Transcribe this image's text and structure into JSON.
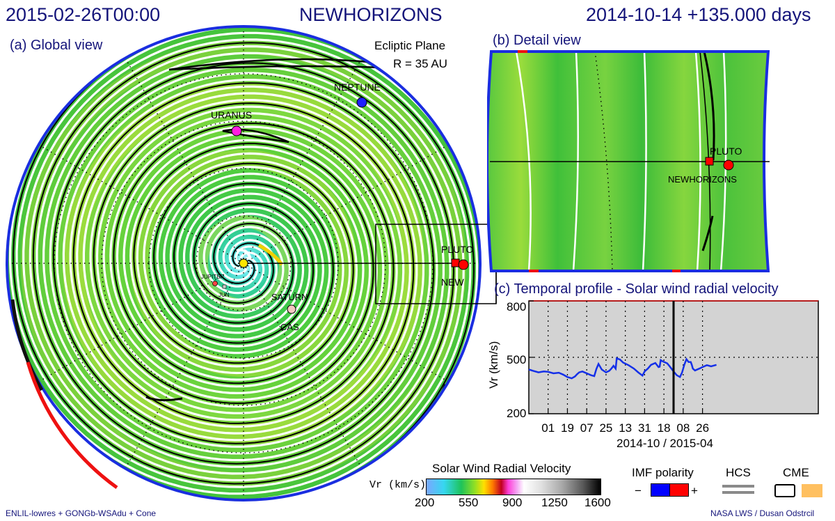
{
  "header": {
    "left": "2015-02-26T00:00",
    "center": "NEWHORIZONS",
    "right": "2014-10-14 +135.000 days"
  },
  "global_view": {
    "title": "(a) Global view",
    "plane": "Ecliptic Plane",
    "radius": "R = 35 AU",
    "labels": {
      "neptune": "NEPTUNE",
      "uranus": "URANUS",
      "pluto": "PLUTO",
      "new": "NEW",
      "saturn": "SATURN",
      "cas": "CAS",
      "jupiter": "JUPITER",
      "jun": "JUN"
    }
  },
  "detail_view": {
    "title": "(b) Detail view",
    "labels": {
      "pluto": "PLUTO",
      "newhorizons": "NEWHORIZONS"
    }
  },
  "chart_data": {
    "type": "line",
    "title": "(c) Temporal profile - Solar wind radial velocity",
    "ylabel": "Vr (km/s)",
    "xlabel": "2014-10 / 2015-04",
    "ylim": [
      200,
      800
    ],
    "yticks": [
      200,
      500,
      800
    ],
    "xlim": [
      0,
      270
    ],
    "xticks": [
      {
        "pos": 18,
        "label": "01"
      },
      {
        "pos": 36,
        "label": "19"
      },
      {
        "pos": 54,
        "label": "07"
      },
      {
        "pos": 72,
        "label": "25"
      },
      {
        "pos": 90,
        "label": "13"
      },
      {
        "pos": 108,
        "label": "31"
      },
      {
        "pos": 126,
        "label": "18"
      },
      {
        "pos": 144,
        "label": "08"
      },
      {
        "pos": 162,
        "label": "26"
      }
    ],
    "current_day": 135,
    "grid": true,
    "series": [
      {
        "x": [
          0,
          4,
          9,
          14,
          18,
          23,
          28,
          32,
          36,
          38,
          40,
          43,
          45,
          47,
          50,
          54,
          58,
          61,
          63,
          65,
          68,
          72,
          75,
          77,
          79,
          81,
          82,
          85,
          88,
          93,
          98,
          102,
          106,
          108,
          111,
          114,
          118,
          121,
          122,
          123,
          125,
          129,
          131,
          133,
          135,
          138,
          141,
          143,
          145,
          147,
          149,
          151,
          152,
          153,
          155,
          159,
          162,
          166,
          170,
          175
        ],
        "y": [
          435,
          428,
          420,
          425,
          423,
          415,
          418,
          408,
          395,
          392,
          388,
          398,
          410,
          420,
          425,
          415,
          405,
          400,
          438,
          465,
          435,
          420,
          428,
          440,
          455,
          440,
          495,
          488,
          472,
          458,
          440,
          420,
          403,
          425,
          440,
          460,
          470,
          448,
          450,
          485,
          478,
          468,
          455,
          440,
          425,
          405,
          395,
          420,
          460,
          490,
          475,
          475,
          460,
          440,
          430,
          440,
          448,
          458,
          452,
          460
        ]
      }
    ]
  },
  "colorbar": {
    "title": "Solar Wind Radial Velocity",
    "unit": "Vr (km/s)",
    "ticks": [
      "200",
      "550",
      "900",
      "1250",
      "1600"
    ]
  },
  "legend": {
    "imf": "IMF polarity",
    "minus": "−",
    "plus": "+",
    "hcs": "HCS",
    "cme": "CME",
    "colors": {
      "neg": "#0000ff",
      "pos": "#ff0000",
      "hcs": "#8a8a8a",
      "cme": "#ffc060"
    }
  },
  "footer": {
    "left": "ENLIL-lowres + GONGb-WSAdu + Cone",
    "right": "NASA LWS / Dusan Odstrcil"
  }
}
